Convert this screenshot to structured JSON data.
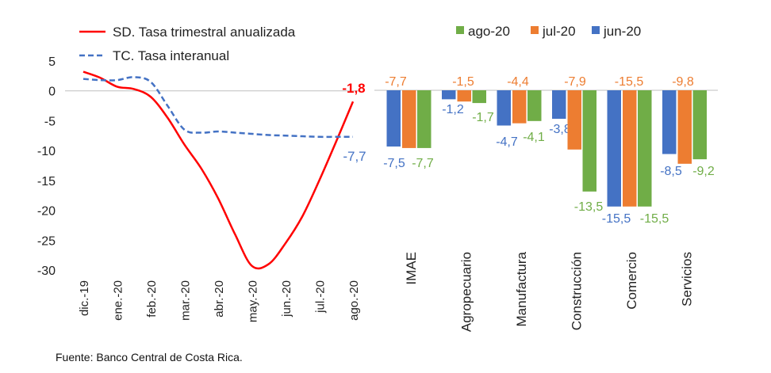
{
  "source_note": "Fuente: Banco Central de Costa Rica.",
  "chart_data": [
    {
      "type": "line",
      "ylim": [
        -30,
        5
      ],
      "yticks": [
        "5",
        "0",
        "-5",
        "-10",
        "-15",
        "-20",
        "-25",
        "-30"
      ],
      "ytick_values": [
        5,
        0,
        -5,
        -10,
        -15,
        -20,
        -25,
        -30
      ],
      "x_labels": [
        "dic.-19",
        "ene.-20",
        "feb.-20",
        "mar.-20",
        "abr.-20",
        "may.-20",
        "jun.-20",
        "jul.-20",
        "ago.-20"
      ],
      "series": [
        {
          "name": "SD. Tasa trimestral anualizada",
          "color": "#ff0000",
          "style": "solid",
          "x": [
            0,
            0.5,
            1,
            1.5,
            2,
            2.5,
            3,
            3.5,
            4,
            4.5,
            5,
            5.5,
            6,
            6.5,
            7,
            7.5,
            8
          ],
          "values": [
            3.2,
            2.2,
            0.7,
            0.3,
            -1.0,
            -4.5,
            -9.0,
            -13.0,
            -18.0,
            -24.0,
            -29.3,
            -29.0,
            -25.5,
            -21.0,
            -15.0,
            -8.5,
            -1.8
          ],
          "end_label": "-1,8"
        },
        {
          "name": "TC. Tasa interanual",
          "color": "#4472c4",
          "style": "dashed",
          "x": [
            0,
            0.5,
            1,
            1.5,
            2,
            2.5,
            3,
            3.5,
            4,
            4.5,
            5,
            5.5,
            6,
            6.5,
            7,
            7.5,
            8
          ],
          "values": [
            2.0,
            1.8,
            1.8,
            2.3,
            1.5,
            -2.5,
            -6.5,
            -7.0,
            -6.8,
            -7.0,
            -7.2,
            -7.4,
            -7.5,
            -7.6,
            -7.7,
            -7.7,
            -7.7
          ],
          "end_label": "-7,7"
        }
      ]
    },
    {
      "type": "bar",
      "categories": [
        "IMAE",
        "Agropecuario",
        "Manufactura",
        "Construcción",
        "Comercio",
        "Servicios"
      ],
      "ylim": [
        -20,
        3
      ],
      "legend": [
        "ago-20",
        "jul-20",
        "jun-20"
      ],
      "series": [
        {
          "name": "jun-20",
          "color": "#4472c4",
          "values": [
            -7.5,
            -1.2,
            -4.7,
            -3.8,
            -15.5,
            -8.5
          ],
          "labels": [
            "-7,5",
            "-1,2",
            "-4,7",
            "-3,8",
            "-15,5",
            "-8,5"
          ]
        },
        {
          "name": "jul-20",
          "color": "#ed7d31",
          "values": [
            -7.7,
            -1.5,
            -4.4,
            -7.9,
            -15.5,
            -9.8
          ],
          "labels": [
            "-7,7",
            "-1,5",
            "-4,4",
            "-7,9",
            "-15,5",
            "-9,8"
          ]
        },
        {
          "name": "ago-20",
          "color": "#70ad47",
          "values": [
            -7.7,
            -1.7,
            -4.1,
            -13.5,
            -15.5,
            -9.2
          ],
          "labels": [
            "-7,7",
            "-1,7",
            "-4,1",
            "-13,5",
            "-15,5",
            "-9,2"
          ]
        }
      ]
    }
  ]
}
